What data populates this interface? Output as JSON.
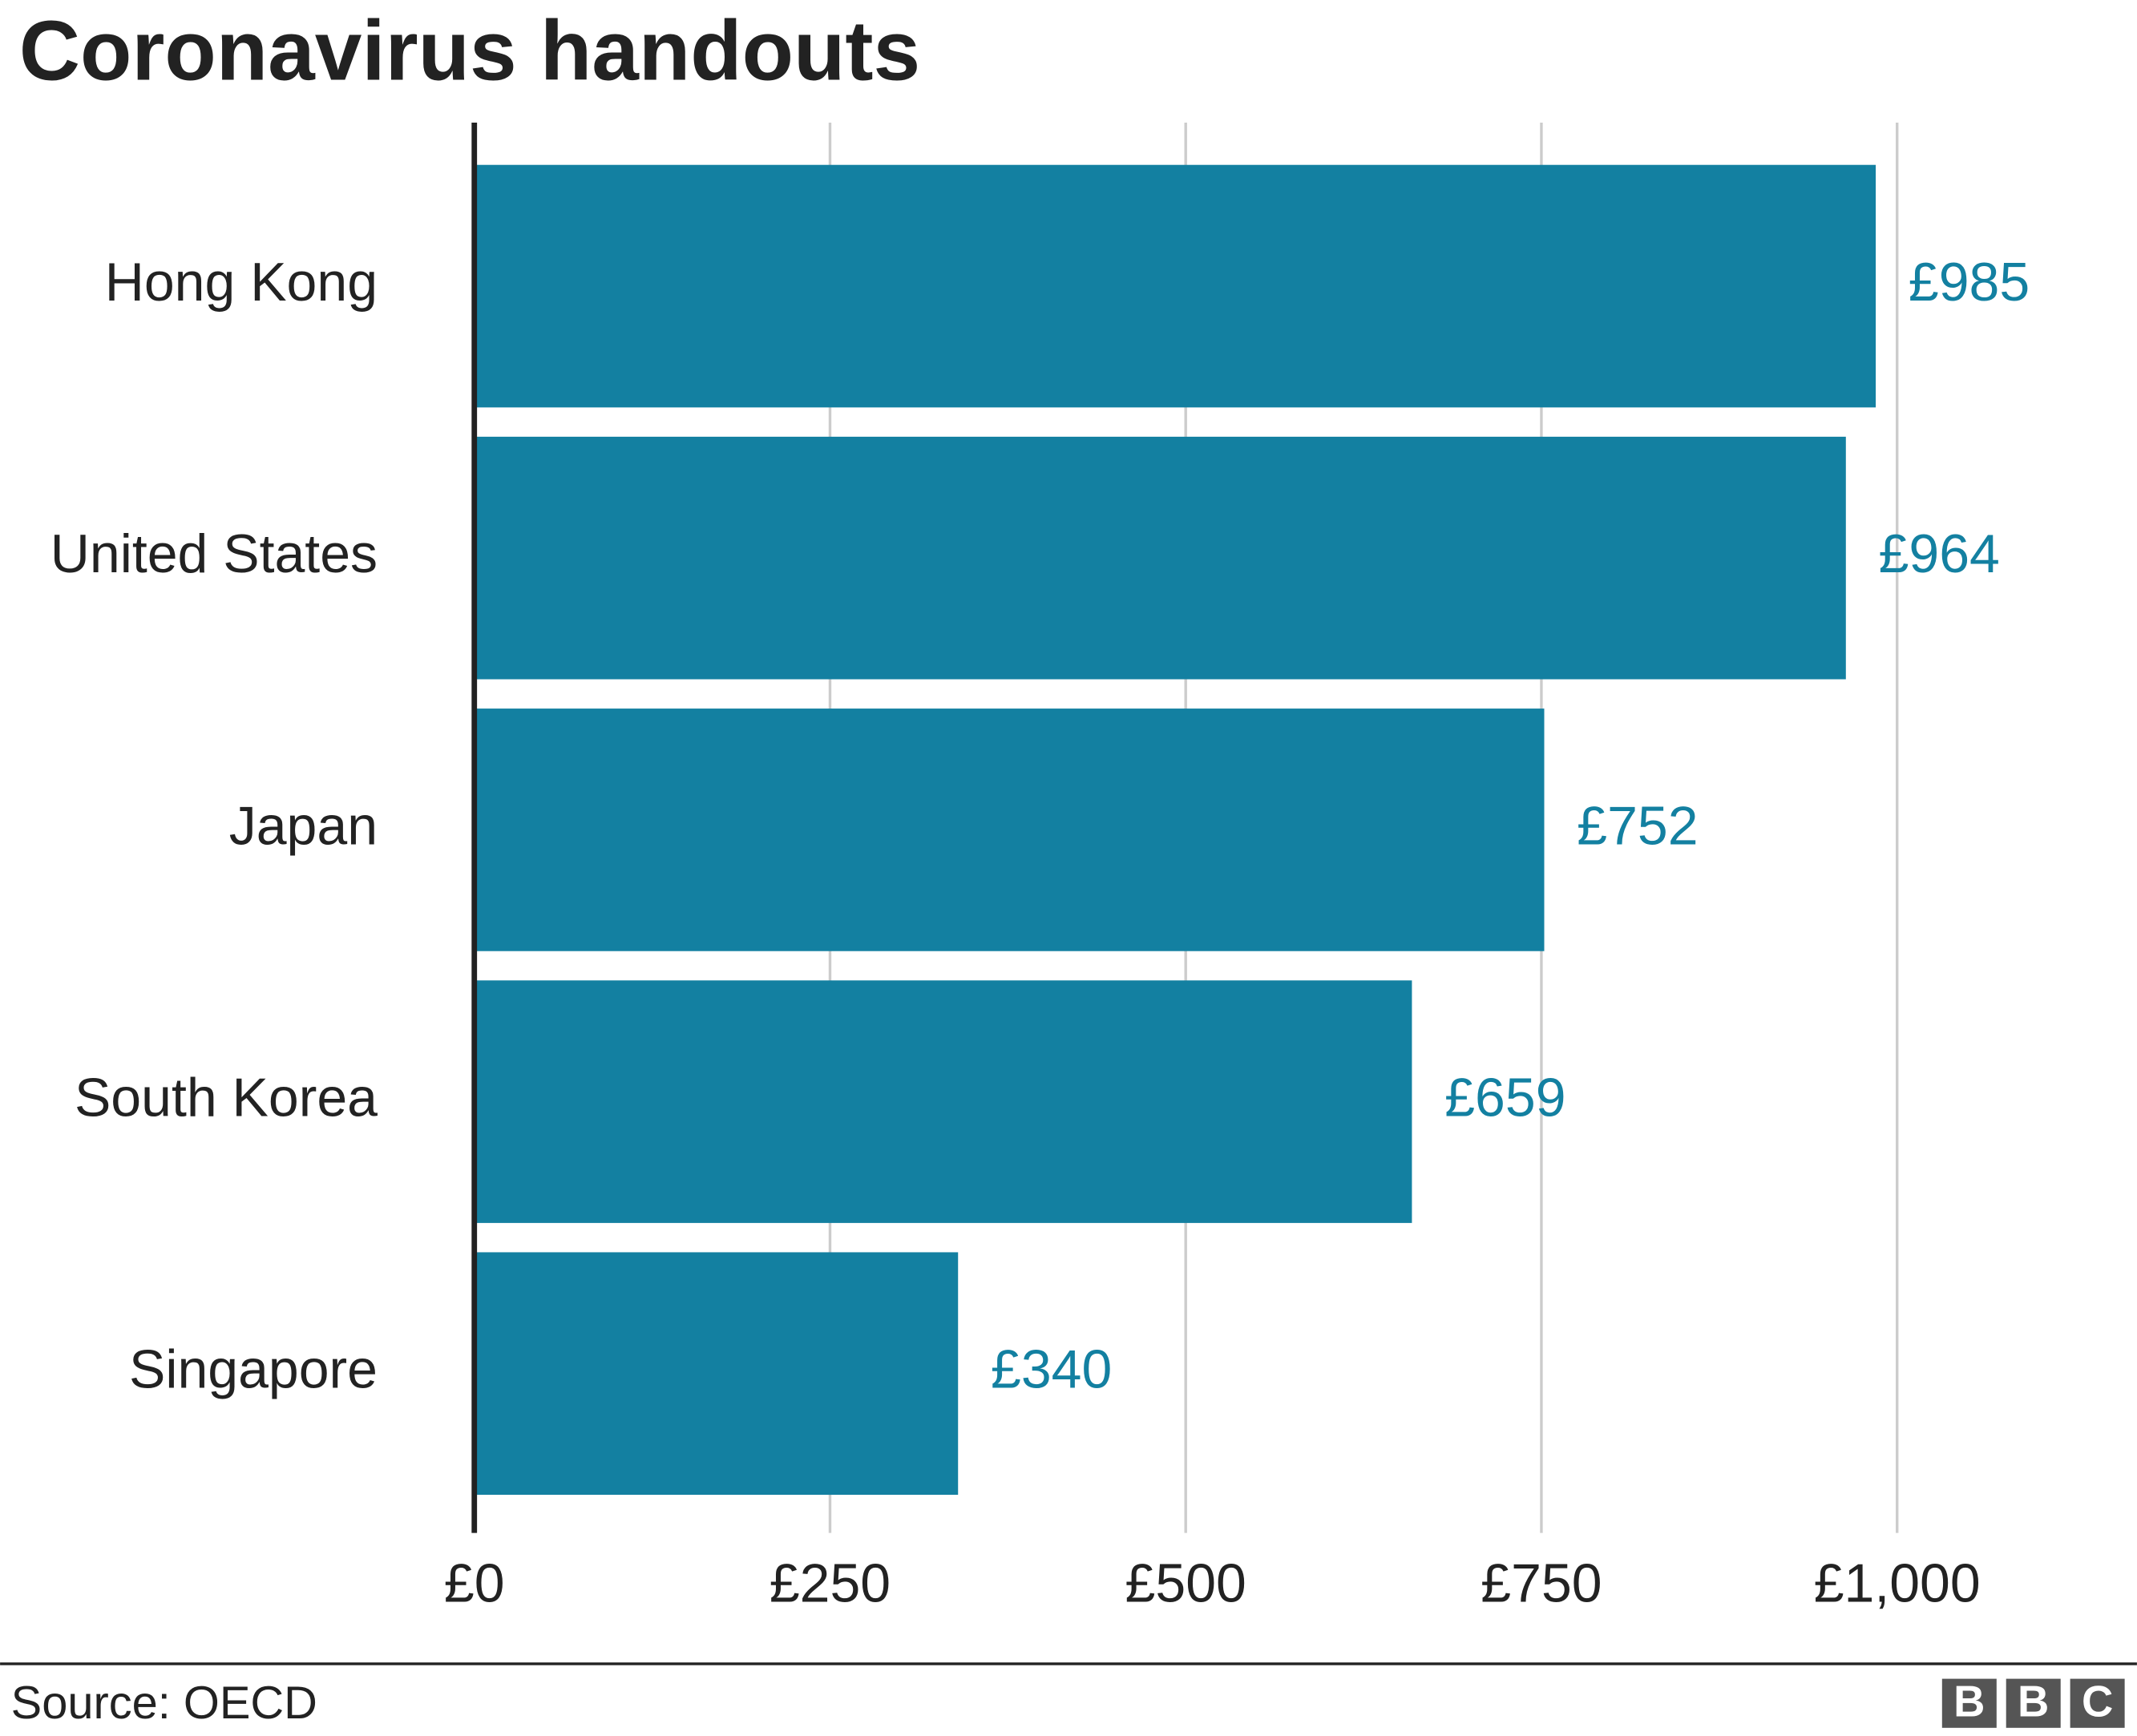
{
  "chart_data": {
    "type": "bar",
    "orientation": "horizontal",
    "title": "Coronavirus handouts",
    "categories": [
      "Hong Kong",
      "United States",
      "Japan",
      "South Korea",
      "Singapore"
    ],
    "values": [
      985,
      964,
      752,
      659,
      340
    ],
    "value_labels": [
      "£985",
      "£964",
      "£752",
      "£659",
      "£340"
    ],
    "color": "#1380a1",
    "xlim": [
      0,
      1000
    ],
    "xticks": [
      {
        "value": 0,
        "label": "£0"
      },
      {
        "value": 250,
        "label": "£250"
      },
      {
        "value": 500,
        "label": "£500"
      },
      {
        "value": 750,
        "label": "£750"
      },
      {
        "value": 1000,
        "label": "£1,000"
      }
    ],
    "grid": true,
    "source": "Source: OECD",
    "logo": [
      "B",
      "B",
      "C"
    ]
  }
}
